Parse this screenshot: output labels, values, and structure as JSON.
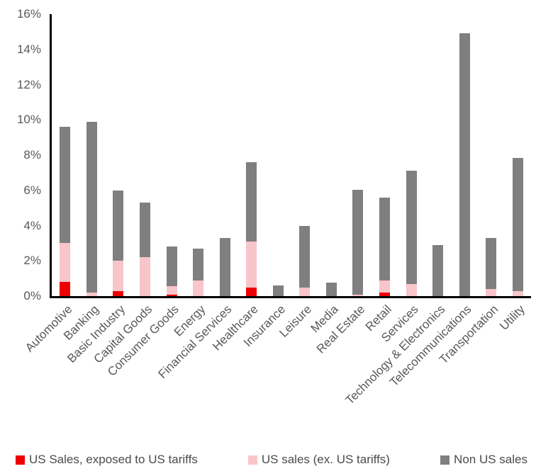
{
  "chart_data": {
    "type": "bar",
    "variant": "stacked",
    "title": "",
    "xlabel": "",
    "ylabel": "",
    "ylim": [
      0,
      16
    ],
    "yticks": [
      "0%",
      "2%",
      "4%",
      "6%",
      "8%",
      "10%",
      "12%",
      "14%",
      "16%"
    ],
    "grid": false,
    "legend_position": "bottom",
    "categories": [
      "Automotive",
      "Banking",
      "Basic Industry",
      "Capital Goods",
      "Consumer Goods",
      "Energy",
      "Financial Services",
      "Healthcare",
      "Insurance",
      "Leisure",
      "Media",
      "Real Estate",
      "Retail",
      "Services",
      "Technology & Electronics",
      "Telecommunications",
      "Transportation",
      "Utility"
    ],
    "series": [
      {
        "name": "US Sales, exposed to US tariffs",
        "color": "#ee0000",
        "values": [
          0.8,
          0,
          0.3,
          0,
          0.1,
          0,
          0,
          0.5,
          0,
          0,
          0,
          0,
          0.2,
          0,
          0,
          0,
          0,
          0
        ]
      },
      {
        "name": "US sales (ex. US tariffs)",
        "color": "#f8c5ca",
        "values": [
          2.2,
          0.2,
          1.7,
          2.2,
          0.45,
          0.9,
          0,
          2.6,
          0,
          0.5,
          0,
          0.1,
          0.7,
          0.7,
          0,
          0,
          0.4,
          0.3
        ]
      },
      {
        "name": "Non US sales",
        "color": "#7f7f7f",
        "values": [
          6.6,
          9.7,
          4.0,
          3.1,
          2.25,
          1.8,
          3.3,
          4.5,
          0.6,
          3.5,
          0.75,
          5.95,
          4.7,
          6.4,
          2.9,
          14.9,
          2.9,
          7.55
        ]
      }
    ],
    "totals": [
      9.6,
      9.9,
      6.0,
      5.3,
      2.8,
      2.7,
      3.3,
      7.6,
      0.6,
      4.0,
      0.75,
      6.05,
      5.6,
      7.1,
      2.9,
      14.9,
      3.3,
      7.85
    ]
  },
  "colors": {
    "axis": "#000000",
    "tick_text": "#595959",
    "legend_text": "#4a4a4a",
    "background": "#ffffff"
  }
}
